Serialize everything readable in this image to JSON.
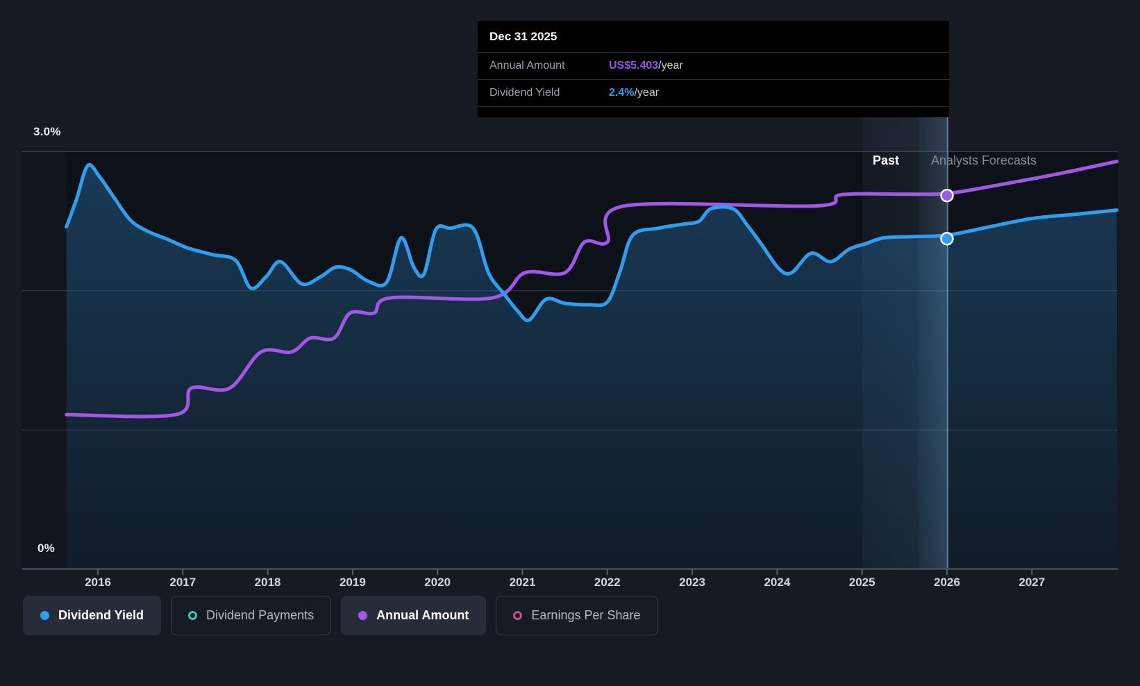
{
  "tooltip": {
    "title": "Dec 31 2025",
    "rows": [
      {
        "label": "Annual Amount",
        "value": "US$5.403",
        "suffix": "/year",
        "color": "#9b4fe8"
      },
      {
        "label": "Dividend Yield",
        "value": "2.4%",
        "suffix": "/year",
        "color": "#2d9fee"
      }
    ]
  },
  "axis": {
    "y_top_label": "3.0%",
    "y_bottom_label": "0%",
    "x_labels": [
      "2016",
      "2017",
      "2018",
      "2019",
      "2020",
      "2021",
      "2022",
      "2023",
      "2024",
      "2025",
      "2026",
      "2027"
    ]
  },
  "annotations": {
    "past_label": "Past",
    "forecast_label": "Analysts Forecasts"
  },
  "legend": [
    {
      "label": "Dividend Yield",
      "style": "filled",
      "color": "#2d9fee",
      "active": true
    },
    {
      "label": "Dividend Payments",
      "style": "hollow",
      "color": "#41c4b3",
      "active": false
    },
    {
      "label": "Annual Amount",
      "style": "filled",
      "color": "#a257e6",
      "active": true
    },
    {
      "label": "Earnings Per Share",
      "style": "hollow",
      "color": "#c64b8c",
      "active": false
    }
  ],
  "colors": {
    "page_bg": "#161a23",
    "plot_bg": "#0d1118",
    "gutter_bg": "#11151d",
    "gridline": "#3a404b",
    "axis_line": "#474d59",
    "tick": "#5a606b",
    "dividend_yield": "#2d9fee",
    "annual_amount": "#a257e6",
    "hover_line": "rgba(150,190,220,0.55)"
  },
  "chart_data": {
    "type": "line",
    "title": "Dividend history and forecast",
    "x_axis": {
      "start": 2015.63,
      "end": 2028.0,
      "ticks": [
        2016,
        2017,
        2018,
        2019,
        2020,
        2021,
        2022,
        2023,
        2024,
        2025,
        2026,
        2027
      ]
    },
    "y_axis": {
      "min": 0,
      "max": 3.0,
      "unit": "%",
      "gridlines_pct": [
        3.0,
        2.0,
        1.0,
        0.0
      ],
      "labeled": [
        "3.0%",
        "0%"
      ],
      "grid": true
    },
    "divider_year": 2026.0,
    "past_band_start_year": 2025.0,
    "legend_position": "bottom",
    "series": [
      {
        "name": "Dividend Yield",
        "color": "#2d9fee",
        "unit": "%",
        "area_fill": true,
        "marker": {
          "x": 2026.0,
          "y": 2.4,
          "display": "2.4%/year"
        },
        "points": [
          [
            2015.63,
            2.46
          ],
          [
            2015.75,
            2.66
          ],
          [
            2015.88,
            2.9
          ],
          [
            2016.02,
            2.82
          ],
          [
            2016.18,
            2.68
          ],
          [
            2016.38,
            2.51
          ],
          [
            2016.58,
            2.43
          ],
          [
            2016.82,
            2.37
          ],
          [
            2017.05,
            2.31
          ],
          [
            2017.35,
            2.26
          ],
          [
            2017.62,
            2.22
          ],
          [
            2017.8,
            2.02
          ],
          [
            2017.98,
            2.1
          ],
          [
            2018.15,
            2.21
          ],
          [
            2018.4,
            2.05
          ],
          [
            2018.62,
            2.1
          ],
          [
            2018.8,
            2.17
          ],
          [
            2018.98,
            2.15
          ],
          [
            2019.18,
            2.07
          ],
          [
            2019.4,
            2.06
          ],
          [
            2019.57,
            2.38
          ],
          [
            2019.72,
            2.17
          ],
          [
            2019.84,
            2.12
          ],
          [
            2019.98,
            2.44
          ],
          [
            2020.15,
            2.45
          ],
          [
            2020.42,
            2.45
          ],
          [
            2020.6,
            2.13
          ],
          [
            2020.78,
            1.98
          ],
          [
            2020.95,
            1.85
          ],
          [
            2021.08,
            1.79
          ],
          [
            2021.28,
            1.94
          ],
          [
            2021.5,
            1.91
          ],
          [
            2021.78,
            1.9
          ],
          [
            2022.0,
            1.92
          ],
          [
            2022.15,
            2.14
          ],
          [
            2022.3,
            2.4
          ],
          [
            2022.6,
            2.45
          ],
          [
            2022.9,
            2.48
          ],
          [
            2023.08,
            2.5
          ],
          [
            2023.22,
            2.59
          ],
          [
            2023.48,
            2.59
          ],
          [
            2023.65,
            2.47
          ],
          [
            2023.82,
            2.33
          ],
          [
            2024.02,
            2.16
          ],
          [
            2024.17,
            2.13
          ],
          [
            2024.4,
            2.27
          ],
          [
            2024.63,
            2.21
          ],
          [
            2024.85,
            2.3
          ],
          [
            2025.05,
            2.34
          ],
          [
            2025.25,
            2.38
          ],
          [
            2025.6,
            2.39
          ],
          [
            2026.0,
            2.4
          ],
          [
            2026.5,
            2.46
          ],
          [
            2027.0,
            2.52
          ],
          [
            2027.5,
            2.55
          ],
          [
            2028.0,
            2.58
          ]
        ]
      },
      {
        "name": "Annual Amount",
        "color": "#a257e6",
        "unit": "US$/year (plotted on hidden scale)",
        "area_fill": false,
        "marker": {
          "x": 2026.0,
          "y": 2.7,
          "display": "US$5.403/year"
        },
        "points": [
          [
            2015.63,
            1.11
          ],
          [
            2016.92,
            1.11
          ],
          [
            2017.1,
            1.3
          ],
          [
            2017.55,
            1.3
          ],
          [
            2017.92,
            1.56
          ],
          [
            2018.28,
            1.56
          ],
          [
            2018.5,
            1.66
          ],
          [
            2018.78,
            1.66
          ],
          [
            2018.97,
            1.84
          ],
          [
            2019.25,
            1.84
          ],
          [
            2019.45,
            1.95
          ],
          [
            2020.65,
            1.95
          ],
          [
            2021.03,
            2.13
          ],
          [
            2021.5,
            2.13
          ],
          [
            2021.73,
            2.35
          ],
          [
            2022.0,
            2.35
          ],
          [
            2022.2,
            2.61
          ],
          [
            2024.45,
            2.61
          ],
          [
            2024.75,
            2.69
          ],
          [
            2025.5,
            2.695
          ],
          [
            2026.0,
            2.7
          ],
          [
            2026.6,
            2.76
          ],
          [
            2027.3,
            2.84
          ],
          [
            2028.0,
            2.93
          ]
        ]
      }
    ]
  }
}
